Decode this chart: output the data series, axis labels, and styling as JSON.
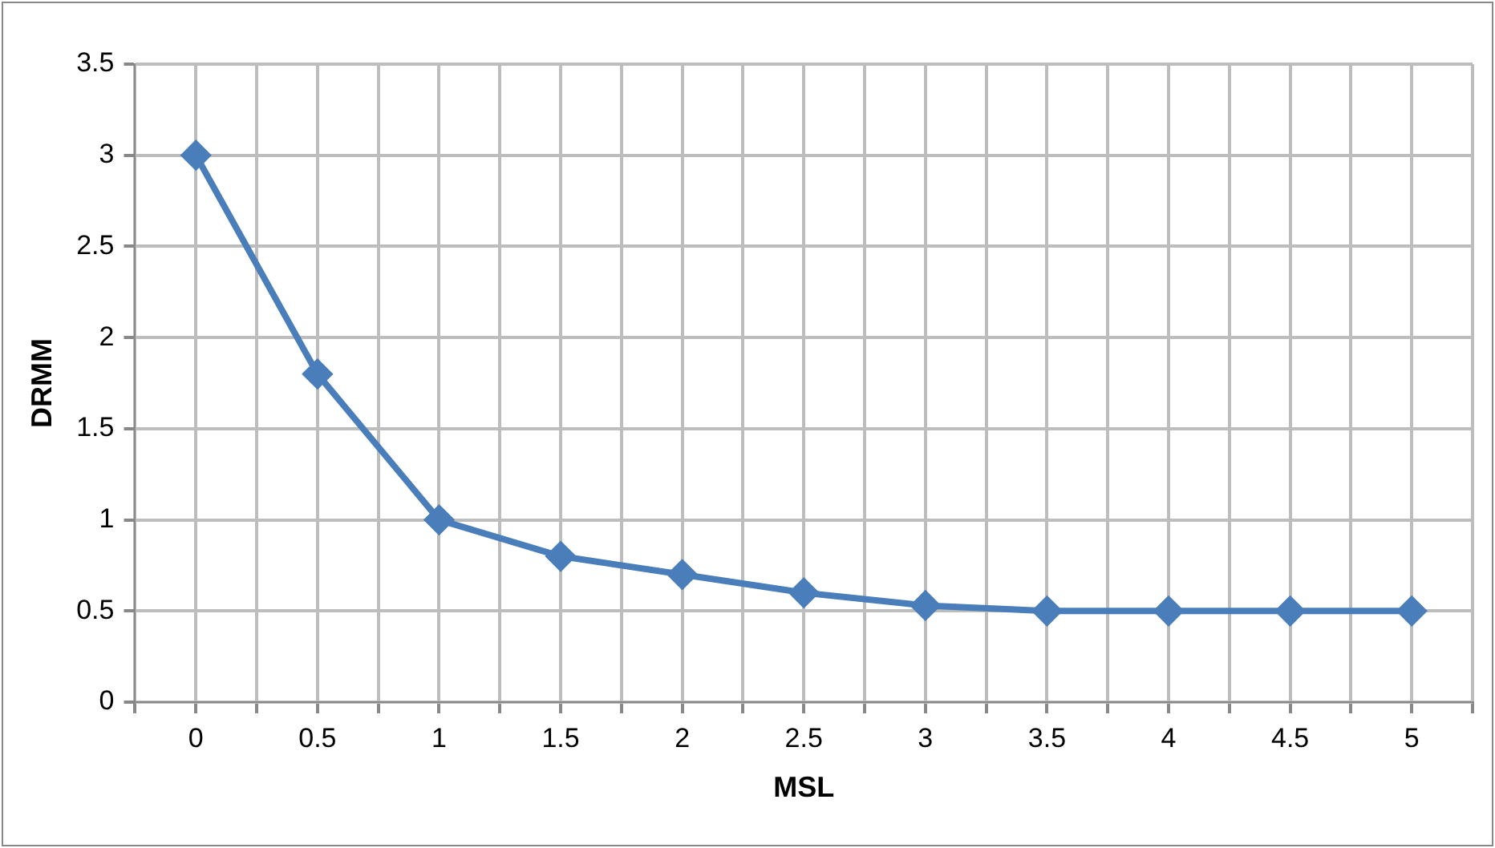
{
  "chart_data": {
    "type": "line",
    "xlabel": "MSL",
    "ylabel": "DRMM",
    "x": [
      0,
      0.5,
      1,
      1.5,
      2,
      2.5,
      3,
      3.5,
      4,
      4.5,
      5
    ],
    "series": [
      {
        "color": "#4a7ebb",
        "values": [
          3,
          1.8,
          1,
          0.8,
          0.7,
          0.6,
          0.53,
          0.5,
          0.5,
          0.5,
          0.5
        ]
      }
    ],
    "xlim": [
      -0.25,
      5.25
    ],
    "xticks": [
      {
        "value": -0.25,
        "label": null
      },
      0,
      {
        "value": 0.25,
        "label": null
      },
      0.5,
      {
        "value": 0.75,
        "label": null
      },
      1,
      {
        "value": 1.25,
        "label": null
      },
      1.5,
      {
        "value": 1.75,
        "label": null
      },
      2,
      {
        "value": 2.25,
        "label": null
      },
      2.5,
      {
        "value": 2.75,
        "label": null
      },
      3,
      {
        "value": 3.25,
        "label": null
      },
      3.5,
      {
        "value": 3.75,
        "label": null
      },
      4,
      {
        "value": 4.25,
        "label": null
      },
      4.5,
      {
        "value": 4.75,
        "label": null
      },
      5,
      {
        "value": 5.25,
        "label": null
      }
    ],
    "ylim": [
      0,
      3.5
    ],
    "yticks": [
      0,
      0.5,
      1,
      1.5,
      2,
      2.5,
      3,
      3.5
    ],
    "grid": true,
    "legend": false,
    "marker": "diamond",
    "line_style": "solid"
  }
}
